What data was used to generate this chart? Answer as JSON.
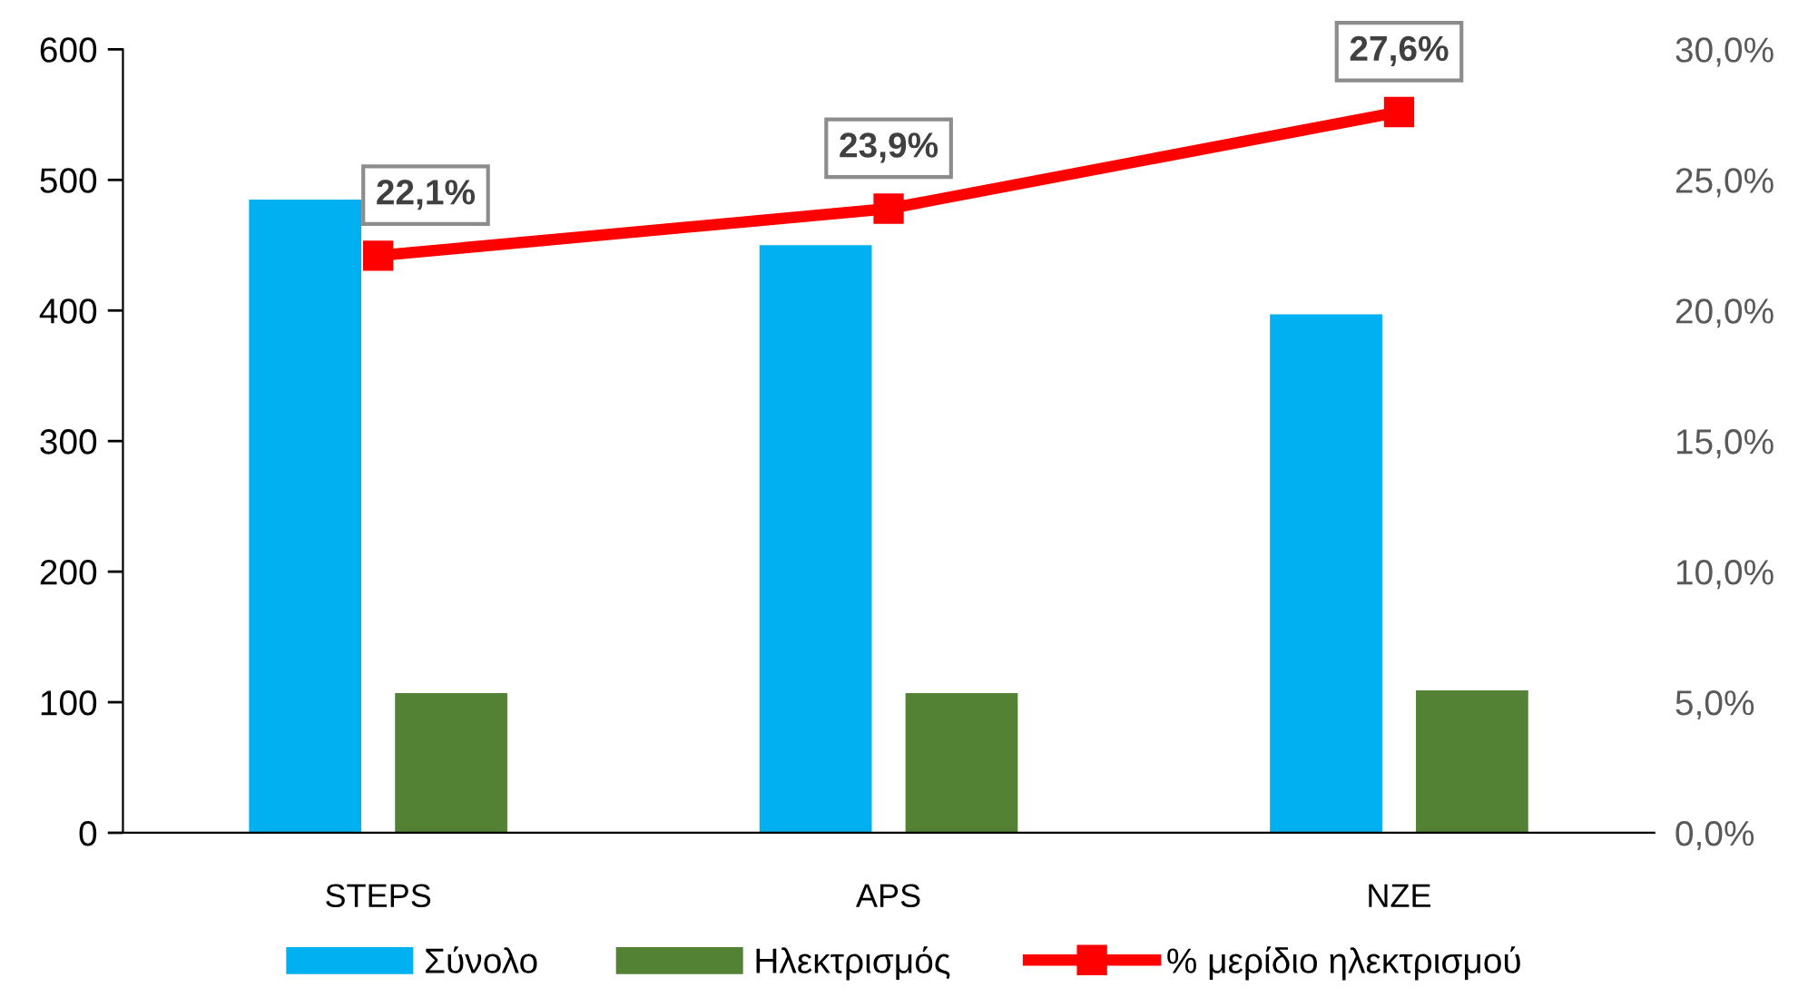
{
  "chart_data": {
    "type": "bar",
    "categories": [
      "STEPS",
      "APS",
      "NZE"
    ],
    "series": [
      {
        "name": "Σύνολο",
        "color": "#00b0f0",
        "values": [
          485,
          450,
          397
        ]
      },
      {
        "name": "Ηλεκτρισμός",
        "color": "#548235",
        "values": [
          107,
          107,
          109
        ]
      },
      {
        "name": "% μερίδιο ηλεκτρισμού",
        "type": "line",
        "axis": "y2",
        "color": "#ff0000",
        "marker": "square",
        "line_style": "solid",
        "values": [
          22.1,
          23.9,
          27.6
        ],
        "value_labels": [
          "22,1%",
          "23,9%",
          "27,6%"
        ]
      }
    ],
    "ylim": [
      0,
      600
    ],
    "yticks": [
      0,
      100,
      200,
      300,
      400,
      500,
      600
    ],
    "y2lim": [
      0,
      30
    ],
    "y2ticks": [
      {
        "value": 0,
        "label": "0,0%"
      },
      {
        "value": 5,
        "label": "5,0%"
      },
      {
        "value": 10,
        "label": "10,0%"
      },
      {
        "value": 15,
        "label": "15,0%"
      },
      {
        "value": 20,
        "label": "20,0%"
      },
      {
        "value": 25,
        "label": "25,0%"
      },
      {
        "value": 30,
        "label": "30,0%"
      }
    ],
    "grid": false,
    "legend": "bottom"
  }
}
